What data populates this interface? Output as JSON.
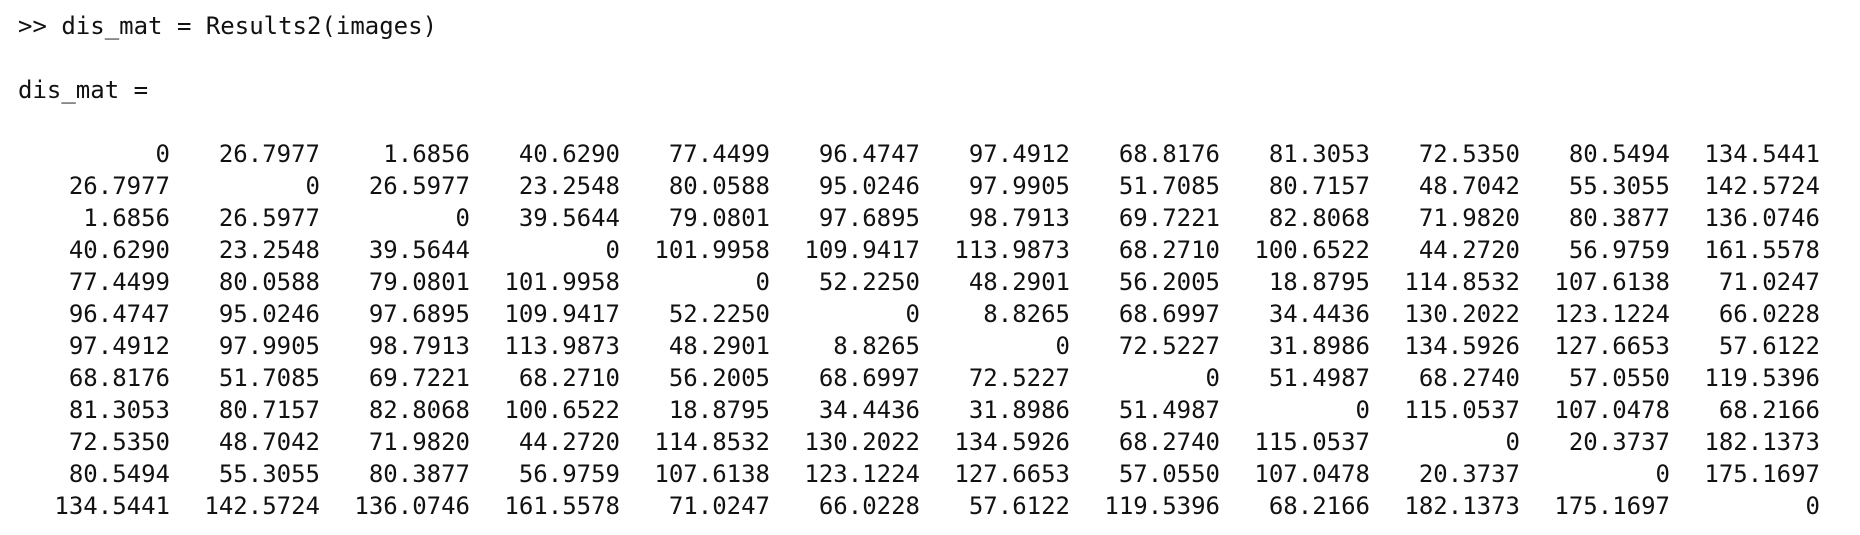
{
  "console": {
    "command_line": ">> dis_mat = Results2(images)",
    "variable_header": "dis_mat ="
  },
  "matrix": {
    "rows": [
      [
        "0",
        "26.7977",
        "1.6856",
        "40.6290",
        "77.4499",
        "96.4747",
        "97.4912",
        "68.8176",
        "81.3053",
        "72.5350",
        "80.5494",
        "134.5441"
      ],
      [
        "26.7977",
        "0",
        "26.5977",
        "23.2548",
        "80.0588",
        "95.0246",
        "97.9905",
        "51.7085",
        "80.7157",
        "48.7042",
        "55.3055",
        "142.5724"
      ],
      [
        "1.6856",
        "26.5977",
        "0",
        "39.5644",
        "79.0801",
        "97.6895",
        "98.7913",
        "69.7221",
        "82.8068",
        "71.9820",
        "80.3877",
        "136.0746"
      ],
      [
        "40.6290",
        "23.2548",
        "39.5644",
        "0",
        "101.9958",
        "109.9417",
        "113.9873",
        "68.2710",
        "100.6522",
        "44.2720",
        "56.9759",
        "161.5578"
      ],
      [
        "77.4499",
        "80.0588",
        "79.0801",
        "101.9958",
        "0",
        "52.2250",
        "48.2901",
        "56.2005",
        "18.8795",
        "114.8532",
        "107.6138",
        "71.0247"
      ],
      [
        "96.4747",
        "95.0246",
        "97.6895",
        "109.9417",
        "52.2250",
        "0",
        "8.8265",
        "68.6997",
        "34.4436",
        "130.2022",
        "123.1224",
        "66.0228"
      ],
      [
        "97.4912",
        "97.9905",
        "98.7913",
        "113.9873",
        "48.2901",
        "8.8265",
        "0",
        "72.5227",
        "31.8986",
        "134.5926",
        "127.6653",
        "57.6122"
      ],
      [
        "68.8176",
        "51.7085",
        "69.7221",
        "68.2710",
        "56.2005",
        "68.6997",
        "72.5227",
        "0",
        "51.4987",
        "68.2740",
        "57.0550",
        "119.5396"
      ],
      [
        "81.3053",
        "80.7157",
        "82.8068",
        "100.6522",
        "18.8795",
        "34.4436",
        "31.8986",
        "51.4987",
        "0",
        "115.0537",
        "107.0478",
        "68.2166"
      ],
      [
        "72.5350",
        "48.7042",
        "71.9820",
        "44.2720",
        "114.8532",
        "130.2022",
        "134.5926",
        "68.2740",
        "115.0537",
        "0",
        "20.3737",
        "182.1373"
      ],
      [
        "80.5494",
        "55.3055",
        "80.3877",
        "56.9759",
        "107.6138",
        "123.1224",
        "127.6653",
        "57.0550",
        "107.0478",
        "20.3737",
        "0",
        "175.1697"
      ],
      [
        "134.5441",
        "142.5724",
        "136.0746",
        "161.5578",
        "71.0247",
        "66.0228",
        "57.6122",
        "119.5396",
        "68.2166",
        "182.1373",
        "175.1697",
        "0"
      ]
    ]
  }
}
